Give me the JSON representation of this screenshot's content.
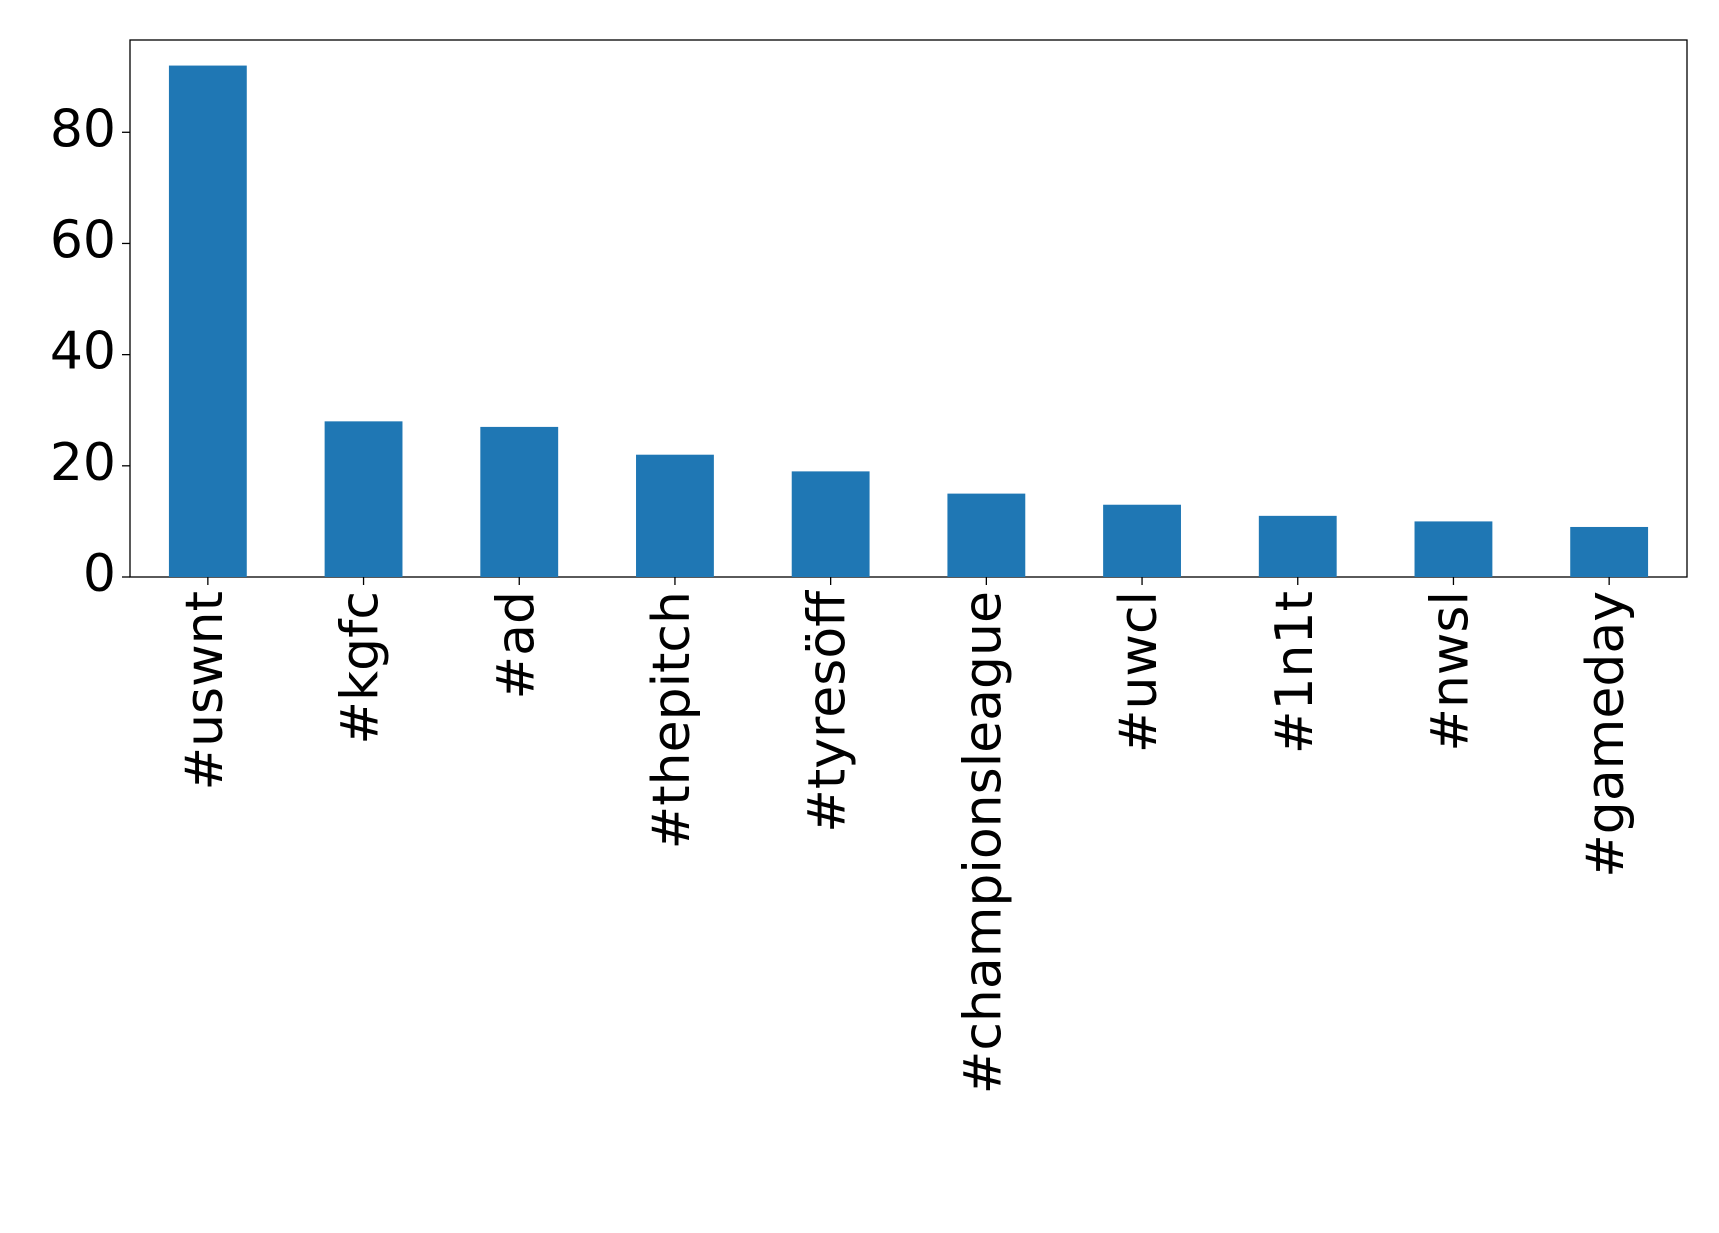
{
  "chart_data": {
    "type": "bar",
    "categories": [
      "#uswnt",
      "#kgfc",
      "#ad",
      "#thepitch",
      "#tyresöff",
      "#championsleague",
      "#uwcl",
      "#1n1t",
      "#nwsl",
      "#gameday"
    ],
    "values": [
      92,
      28,
      27,
      22,
      19,
      15,
      13,
      11,
      10,
      9
    ],
    "color": "#1f77b4",
    "ylim": [
      0,
      96.6
    ],
    "yticks": [
      0,
      20,
      40,
      60,
      80
    ],
    "grid": false
  }
}
